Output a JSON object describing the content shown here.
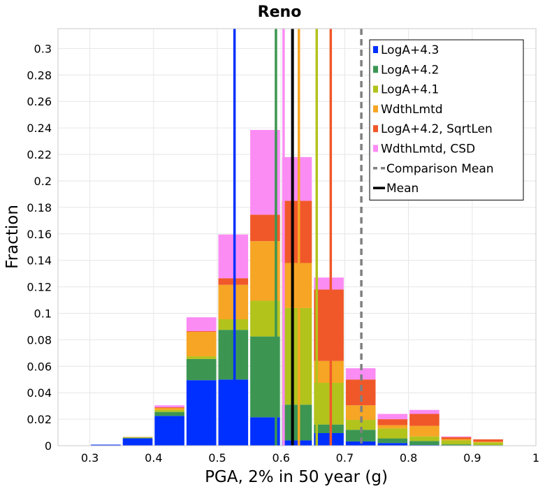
{
  "chart_data": {
    "type": "bar",
    "stacked": true,
    "title": "Reno",
    "xlabel": "PGA, 2% in 50 year (g)",
    "ylabel": "Fraction",
    "xlim": [
      0.25,
      1.0
    ],
    "ylim": [
      0,
      0.315
    ],
    "bin_width": 0.05,
    "x_ticks": [
      "0.3",
      "0.4",
      "0.5",
      "0.6",
      "0.7",
      "0.8",
      "0.9",
      "1"
    ],
    "y_ticks": [
      "0",
      "0.02",
      "0.04",
      "0.06",
      "0.08",
      "0.1",
      "0.12",
      "0.14",
      "0.16",
      "0.18",
      "0.2",
      "0.22",
      "0.24",
      "0.26",
      "0.28",
      "0.3"
    ],
    "bins": [
      0.275,
      0.325,
      0.375,
      0.425,
      0.475,
      0.525,
      0.575,
      0.625,
      0.675,
      0.725,
      0.775,
      0.825,
      0.875,
      0.925,
      0.975
    ],
    "series": [
      {
        "name": "LogA+4.3",
        "color": "#0030ff",
        "values": [
          0.0002,
          0.0008,
          0.0055,
          0.0225,
          0.0495,
          0.05,
          0.0215,
          0.004,
          0.0095,
          0.0032,
          0.002,
          0.0005,
          0.0002,
          0.0001,
          0.0
        ]
      },
      {
        "name": "LogA+4.2",
        "color": "#3c9652",
        "values": [
          0.0,
          0.0,
          0.0005,
          0.003,
          0.016,
          0.0375,
          0.061,
          0.027,
          0.0065,
          0.0088,
          0.0035,
          0.003,
          0.0008,
          0.0004,
          0.0
        ]
      },
      {
        "name": "LogA+4.1",
        "color": "#b2c31c",
        "values": [
          0.0,
          0.0,
          0.0003,
          0.0015,
          0.002,
          0.008,
          0.027,
          0.073,
          0.0315,
          0.0075,
          0.0075,
          0.0035,
          0.003,
          0.002,
          0.0
        ]
      },
      {
        "name": "WdthLmtd",
        "color": "#f6a524",
        "values": [
          0.0,
          0.0,
          0.0003,
          0.0015,
          0.0185,
          0.026,
          0.045,
          0.034,
          0.0165,
          0.011,
          0.0025,
          0.008,
          0.001,
          0.0005,
          0.0
        ]
      },
      {
        "name": "LogA+4.2, SqrtLen",
        "color": "#f0582a",
        "values": [
          0.0,
          0.0,
          0.0,
          0.0005,
          0.0005,
          0.005,
          0.02,
          0.047,
          0.054,
          0.0195,
          0.0045,
          0.009,
          0.0015,
          0.0018,
          0.0
        ]
      },
      {
        "name": "WdthLmtd, CSD",
        "color": "#fb8cf4",
        "values": [
          0.0,
          0.0,
          0.0,
          0.0015,
          0.0105,
          0.033,
          0.064,
          0.033,
          0.009,
          0.0085,
          0.004,
          0.003,
          0.0005,
          0.0,
          0.0
        ]
      }
    ],
    "vertical_lines": [
      {
        "name": "LogA+4.3",
        "x": 0.527,
        "color": "#0030ff",
        "style": "solid"
      },
      {
        "name": "LogA+4.2",
        "x": 0.592,
        "color": "#3c9652",
        "style": "solid"
      },
      {
        "name": "WdthLmtd, CSD",
        "x": 0.604,
        "color": "#fb8cf4",
        "style": "solid"
      },
      {
        "name": "WdthLmtd",
        "x": 0.628,
        "color": "#f6a524",
        "style": "solid"
      },
      {
        "name": "LogA+4.1",
        "x": 0.656,
        "color": "#b2c31c",
        "style": "solid"
      },
      {
        "name": "LogA+4.2, SqrtLen",
        "x": 0.678,
        "color": "#f0582a",
        "style": "solid"
      },
      {
        "name": "Comparison Mean",
        "x": 0.726,
        "color": "#808080",
        "style": "dashed"
      },
      {
        "name": "Mean",
        "x": 0.618,
        "color": "#000000",
        "style": "solid"
      }
    ],
    "legend": {
      "position": "top-right",
      "entries": [
        {
          "label": "LogA+4.3",
          "color": "#0030ff",
          "kind": "box"
        },
        {
          "label": "LogA+4.2",
          "color": "#3c9652",
          "kind": "box"
        },
        {
          "label": "LogA+4.1",
          "color": "#b2c31c",
          "kind": "box"
        },
        {
          "label": "WdthLmtd",
          "color": "#f6a524",
          "kind": "box"
        },
        {
          "label": "LogA+4.2, SqrtLen",
          "color": "#f0582a",
          "kind": "box"
        },
        {
          "label": "WdthLmtd, CSD",
          "color": "#fb8cf4",
          "kind": "box"
        },
        {
          "label": "Comparison Mean",
          "color": "#808080",
          "kind": "dashed-line"
        },
        {
          "label": "Mean",
          "color": "#000000",
          "kind": "line"
        }
      ]
    },
    "grid": true
  }
}
